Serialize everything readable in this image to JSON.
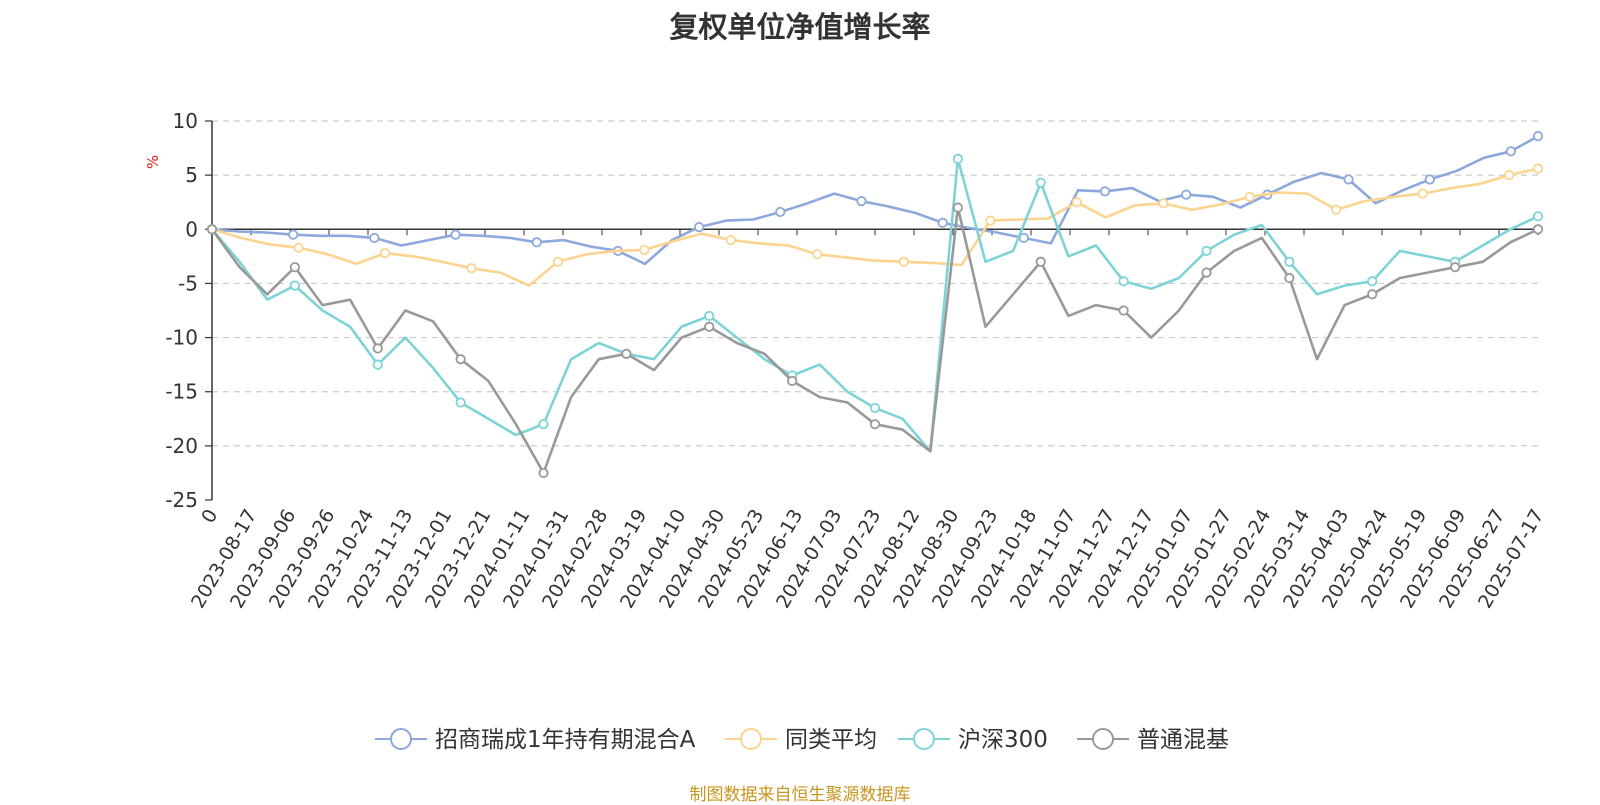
{
  "chart_data": {
    "type": "line",
    "title": "复权单位净值增长率",
    "ylabel": "%",
    "ylim": [
      -25,
      10
    ],
    "yticks": [
      "10",
      "5",
      "0",
      "-5",
      "-10",
      "-15",
      "-20",
      "-25"
    ],
    "grid": true,
    "legend_position": "bottom",
    "x_tick_labels": [
      "0",
      "2023-08-17",
      "2023-09-06",
      "2023-09-26",
      "2023-10-24",
      "2023-11-13",
      "2023-12-01",
      "2023-12-21",
      "2024-01-11",
      "2024-01-31",
      "2024-02-28",
      "2024-03-19",
      "2024-04-10",
      "2024-04-30",
      "2024-05-23",
      "2024-06-13",
      "2024-07-03",
      "2024-07-23",
      "2024-08-12",
      "2024-08-30",
      "2024-09-23",
      "2024-10-18",
      "2024-11-07",
      "2024-11-27",
      "2024-12-17",
      "2025-01-07",
      "2025-01-27",
      "2025-02-24",
      "2025-03-14",
      "2025-04-03",
      "2025-04-24",
      "2025-05-19",
      "2025-06-09",
      "2025-06-27",
      "2025-07-17"
    ],
    "series": [
      {
        "name": "招商瑞成1年持有期混合A",
        "color": "#8ca8dc",
        "values": [
          0,
          -0.2,
          -0.3,
          -0.5,
          -0.6,
          -0.6,
          -0.8,
          -1.5,
          -1.0,
          -0.5,
          -0.6,
          -0.8,
          -1.2,
          -1.0,
          -1.6,
          -2.0,
          -3.2,
          -1.0,
          0.2,
          0.8,
          0.9,
          1.6,
          2.4,
          3.3,
          2.6,
          2.1,
          1.5,
          0.6,
          0.1,
          -0.3,
          -0.8,
          -1.3,
          3.6,
          3.5,
          3.8,
          2.6,
          3.2,
          3.0,
          2.0,
          3.2,
          4.4,
          5.2,
          4.6,
          2.4,
          3.6,
          4.6,
          5.4,
          6.6,
          7.2,
          8.6
        ]
      },
      {
        "name": "同类平均",
        "color": "#fcd490",
        "values": [
          0,
          -0.8,
          -1.4,
          -1.7,
          -2.3,
          -3.2,
          -2.2,
          -2.5,
          -3.0,
          -3.6,
          -4.0,
          -5.2,
          -3.0,
          -2.3,
          -2.0,
          -1.9,
          -1.1,
          -0.4,
          -1.0,
          -1.3,
          -1.5,
          -2.3,
          -2.6,
          -2.9,
          -3.0,
          -3.1,
          -3.3,
          0.8,
          0.9,
          1.0,
          2.5,
          1.1,
          2.2,
          2.4,
          1.8,
          2.3,
          3.0,
          3.4,
          3.3,
          1.8,
          2.6,
          3.0,
          3.3,
          3.8,
          4.2,
          5.0,
          5.6
        ]
      },
      {
        "name": "沪深300",
        "color": "#7ed3d6",
        "values": [
          0,
          -3.0,
          -6.5,
          -5.2,
          -7.5,
          -9.0,
          -12.5,
          -10.0,
          -12.8,
          -16.0,
          -17.5,
          -19.0,
          -18.0,
          -12.0,
          -10.5,
          -11.5,
          -12.0,
          -9.0,
          -8.0,
          -10.0,
          -12.0,
          -13.5,
          -12.5,
          -15.0,
          -16.5,
          -17.5,
          -20.5,
          6.5,
          -3.0,
          -2.0,
          4.3,
          -2.5,
          -1.5,
          -4.8,
          -5.5,
          -4.5,
          -2.0,
          -0.5,
          0.4,
          -3.0,
          -6.0,
          -5.2,
          -4.8,
          -2.0,
          -2.5,
          -3.0,
          -1.5,
          0.0,
          1.2
        ]
      },
      {
        "name": "普通混基",
        "color": "#999999",
        "values": [
          0,
          -3.5,
          -6.0,
          -3.5,
          -7.0,
          -6.5,
          -11.0,
          -7.5,
          -8.5,
          -12.0,
          -14.0,
          -18.0,
          -22.5,
          -15.5,
          -12.0,
          -11.5,
          -13.0,
          -10.0,
          -9.0,
          -10.5,
          -11.5,
          -14.0,
          -15.5,
          -16.0,
          -18.0,
          -18.5,
          -20.5,
          2.0,
          -9.0,
          -6.0,
          -3.0,
          -8.0,
          -7.0,
          -7.5,
          -10.0,
          -7.5,
          -4.0,
          -2.0,
          -0.8,
          -4.5,
          -12.0,
          -7.0,
          -6.0,
          -4.5,
          -4.0,
          -3.5,
          -3.0,
          -1.2,
          0.0
        ]
      }
    ]
  },
  "source_note": "制图数据来自恒生聚源数据库"
}
